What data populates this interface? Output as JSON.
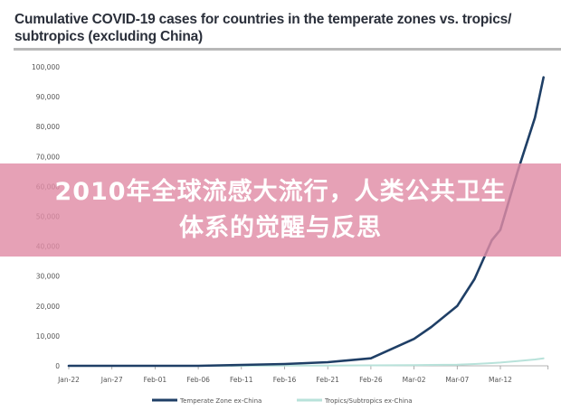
{
  "header": {
    "title": "Cumulative COVID-19 cases for countries in the temperate zones vs. tropics/ subtropics (excluding China)"
  },
  "banner": {
    "text": "2010年全球流感大流行，人类公共卫生体系的觉醒与反思",
    "color": "#e08ca6"
  },
  "legend": {
    "items": [
      {
        "label": "Temperate Zone ex-China",
        "color": "#1f3f66"
      },
      {
        "label": "Tropics/Subtropics ex-China",
        "color": "#b8e2da"
      }
    ]
  },
  "axes": {
    "y_ticks": [
      "100,000",
      "90,000",
      "80,000",
      "70,000",
      "60,000",
      "50,000",
      "40,000",
      "30,000",
      "20,000",
      "10,000",
      "0"
    ],
    "x_ticks": [
      "Jan-22",
      "Jan-27",
      "Feb-01",
      "Feb-06",
      "Feb-11",
      "Feb-16",
      "Feb-21",
      "Feb-26",
      "Mar-02",
      "Mar-07",
      "Mar-12"
    ]
  },
  "chart_data": {
    "type": "line",
    "title": "Cumulative COVID-19 cases for countries in the temperate zones vs. tropics/ subtropics (excluding China)",
    "xlabel": "",
    "ylabel": "",
    "ylim": [
      0,
      100000
    ],
    "grid": false,
    "legend_position": "bottom",
    "x": [
      "Jan-22",
      "Jan-27",
      "Feb-01",
      "Feb-06",
      "Feb-11",
      "Feb-16",
      "Feb-21",
      "Feb-26",
      "Mar-02",
      "Mar-04",
      "Mar-07",
      "Mar-09",
      "Mar-11",
      "Mar-12",
      "Mar-14",
      "Mar-16",
      "Mar-17"
    ],
    "x_day_index": [
      0,
      5,
      10,
      15,
      20,
      25,
      30,
      35,
      40,
      42,
      45,
      47,
      49,
      50,
      52,
      54,
      55
    ],
    "series": [
      {
        "name": "Temperate Zone ex-China",
        "color": "#1f3f66",
        "values": [
          0,
          0,
          0,
          0,
          300,
          600,
          1200,
          2500,
          9000,
          13000,
          20000,
          29000,
          42000,
          45500,
          65000,
          83000,
          96500
        ]
      },
      {
        "name": "Tropics/Subtropics ex-China",
        "color": "#b8e2da",
        "values": [
          0,
          0,
          0,
          0,
          0,
          50,
          100,
          150,
          200,
          300,
          400,
          600,
          900,
          1100,
          1600,
          2100,
          2500
        ]
      }
    ]
  }
}
